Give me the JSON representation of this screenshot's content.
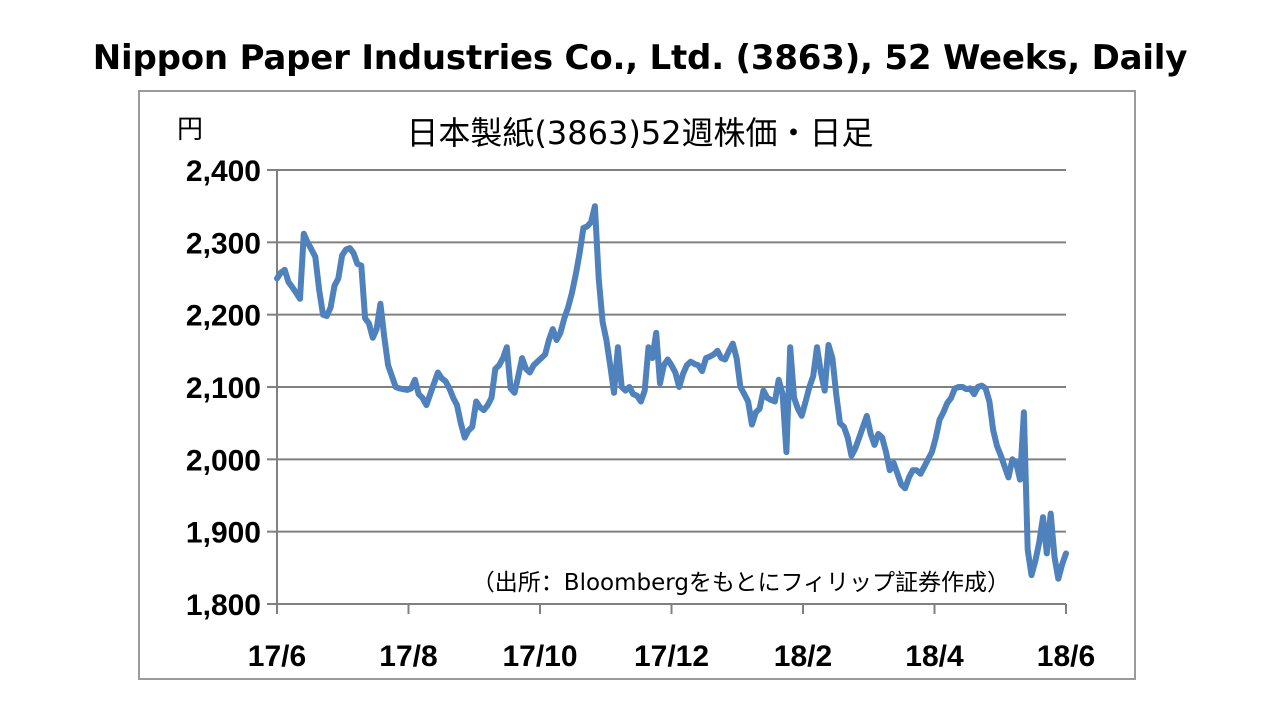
{
  "title": "Nippon Paper Industries Co., Ltd. (3863), 52 Weeks, Daily",
  "colors": {
    "line": "#4f81bd",
    "grid": "#808080",
    "frame": "#9a9a9a"
  },
  "chart_data": {
    "type": "line",
    "title": "日本製紙(3863)52週株価・日足",
    "unit_label": "円",
    "source_note": "（出所：Bloombergをもとにフィリップ証券作成）",
    "xlabel": "",
    "ylabel": "",
    "ylim": [
      1800,
      2400
    ],
    "y_ticks": [
      2400,
      2300,
      2200,
      2100,
      2000,
      1900,
      1800
    ],
    "y_tick_labels": [
      "2,400",
      "2,300",
      "2,200",
      "2,100",
      "2,000",
      "1,900",
      "1,800"
    ],
    "x_ticks": [
      "17/6",
      "17/8",
      "17/10",
      "17/12",
      "18/2",
      "18/4",
      "18/6"
    ],
    "grid": "horizontal",
    "legend": "none",
    "series": [
      {
        "values": [
          2250,
          2258,
          2262,
          2245,
          2238,
          2230,
          2222,
          2312,
          2300,
          2290,
          2280,
          2235,
          2200,
          2198,
          2210,
          2240,
          2250,
          2282,
          2290,
          2292,
          2285,
          2270,
          2268,
          2195,
          2188,
          2168,
          2180,
          2215,
          2170,
          2130,
          2115,
          2100,
          2098,
          2097,
          2096,
          2098,
          2110,
          2090,
          2085,
          2075,
          2090,
          2105,
          2120,
          2112,
          2108,
          2098,
          2085,
          2075,
          2050,
          2030,
          2040,
          2045,
          2080,
          2072,
          2068,
          2075,
          2085,
          2125,
          2130,
          2140,
          2155,
          2098,
          2092,
          2115,
          2140,
          2125,
          2120,
          2130,
          2135,
          2140,
          2145,
          2165,
          2180,
          2165,
          2175,
          2195,
          2210,
          2230,
          2255,
          2285,
          2320,
          2322,
          2328,
          2350,
          2250,
          2190,
          2165,
          2130,
          2092,
          2155,
          2100,
          2095,
          2100,
          2090,
          2088,
          2080,
          2095,
          2155,
          2140,
          2175,
          2105,
          2130,
          2138,
          2130,
          2120,
          2100,
          2118,
          2130,
          2135,
          2132,
          2130,
          2122,
          2140,
          2142,
          2145,
          2150,
          2140,
          2138,
          2150,
          2160,
          2140,
          2100,
          2090,
          2080,
          2048,
          2065,
          2070,
          2095,
          2085,
          2082,
          2080,
          2110,
          2090,
          2010,
          2155,
          2085,
          2070,
          2060,
          2080,
          2100,
          2115,
          2155,
          2120,
          2095,
          2158,
          2140,
          2090,
          2050,
          2045,
          2030,
          2005,
          2015,
          2030,
          2045,
          2060,
          2035,
          2020,
          2035,
          2030,
          2010,
          1985,
          1995,
          1980,
          1965,
          1960,
          1975,
          1985,
          1985,
          1980,
          1990,
          2000,
          2010,
          2030,
          2055,
          2065,
          2078,
          2085,
          2098,
          2100,
          2100,
          2097,
          2098,
          2090,
          2100,
          2102,
          2098,
          2080,
          2040,
          2018,
          2005,
          1990,
          1975,
          2000,
          1995,
          1972,
          2065,
          1875,
          1840,
          1860,
          1885,
          1920,
          1870,
          1925,
          1865,
          1835,
          1855,
          1870
        ]
      }
    ]
  }
}
